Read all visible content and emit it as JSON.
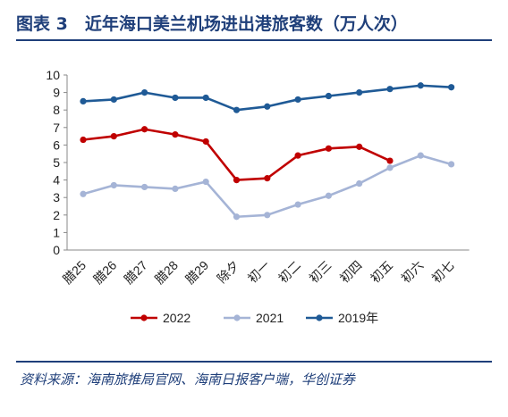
{
  "figure": {
    "title": "图表 3　近年海口美兰机场进出港旅客数（万人次）",
    "source": "资料来源：海南旅推局官网、海南日报客户端，华创证券"
  },
  "chart_data": {
    "type": "line",
    "categories": [
      "腊25",
      "腊26",
      "腊27",
      "腊28",
      "腊29",
      "除夕",
      "初一",
      "初二",
      "初三",
      "初四",
      "初五",
      "初六",
      "初七"
    ],
    "ylim": [
      0,
      10
    ],
    "yticks": [
      0,
      1,
      2,
      3,
      4,
      5,
      6,
      7,
      8,
      9,
      10
    ],
    "grid": false,
    "legend_position": "bottom",
    "series": [
      {
        "name": "2022",
        "color": "#c00000",
        "values": [
          6.3,
          6.5,
          6.9,
          6.6,
          6.2,
          4.0,
          4.1,
          5.4,
          5.8,
          5.9,
          5.1,
          null,
          null
        ]
      },
      {
        "name": "2021",
        "color": "#a5b4d6",
        "values": [
          3.2,
          3.7,
          3.6,
          3.5,
          3.9,
          1.9,
          2.0,
          2.6,
          3.1,
          3.8,
          4.7,
          5.4,
          4.9
        ]
      },
      {
        "name": "2019年",
        "color": "#1f5a96",
        "values": [
          8.5,
          8.6,
          9.0,
          8.7,
          8.7,
          8.0,
          8.2,
          8.6,
          8.8,
          9.0,
          9.2,
          9.4,
          9.3
        ]
      }
    ]
  }
}
